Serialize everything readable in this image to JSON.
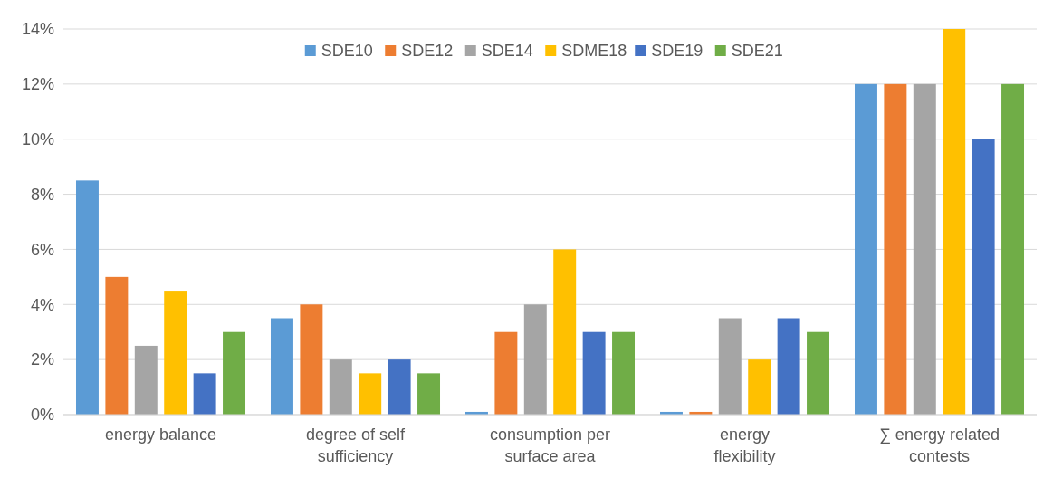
{
  "chart_data": {
    "type": "bar",
    "categories": [
      "energy balance",
      "degree of self sufficiency",
      "consumption per surface area",
      "energy flexibility",
      "∑ energy related contests"
    ],
    "series": [
      {
        "name": "SDE10",
        "color": "#5b9bd5",
        "values": [
          8.5,
          3.5,
          0.1,
          0.1,
          12
        ]
      },
      {
        "name": "SDE12",
        "color": "#ed7d31",
        "values": [
          5,
          4,
          3,
          0.1,
          12
        ]
      },
      {
        "name": "SDE14",
        "color": "#a5a5a5",
        "values": [
          2.5,
          2,
          4,
          3.5,
          12
        ]
      },
      {
        "name": "SDME18",
        "color": "#ffc000",
        "values": [
          4.5,
          1.5,
          6,
          2,
          14
        ]
      },
      {
        "name": "SDE19",
        "color": "#4472c4",
        "values": [
          1.5,
          2,
          3,
          3.5,
          10
        ]
      },
      {
        "name": "SDE21",
        "color": "#70ad47",
        "values": [
          3,
          1.5,
          3,
          3,
          12
        ]
      }
    ],
    "ylim": [
      0,
      14
    ],
    "yticks": [
      {
        "value": 0,
        "label": "0%"
      },
      {
        "value": 2,
        "label": "2%"
      },
      {
        "value": 4,
        "label": "4%"
      },
      {
        "value": 6,
        "label": "6%"
      },
      {
        "value": 8,
        "label": "8%"
      },
      {
        "value": 10,
        "label": "10%"
      },
      {
        "value": 12,
        "label": "12%"
      },
      {
        "value": 14,
        "label": "14%"
      }
    ],
    "grid": "y",
    "legend": "top"
  }
}
